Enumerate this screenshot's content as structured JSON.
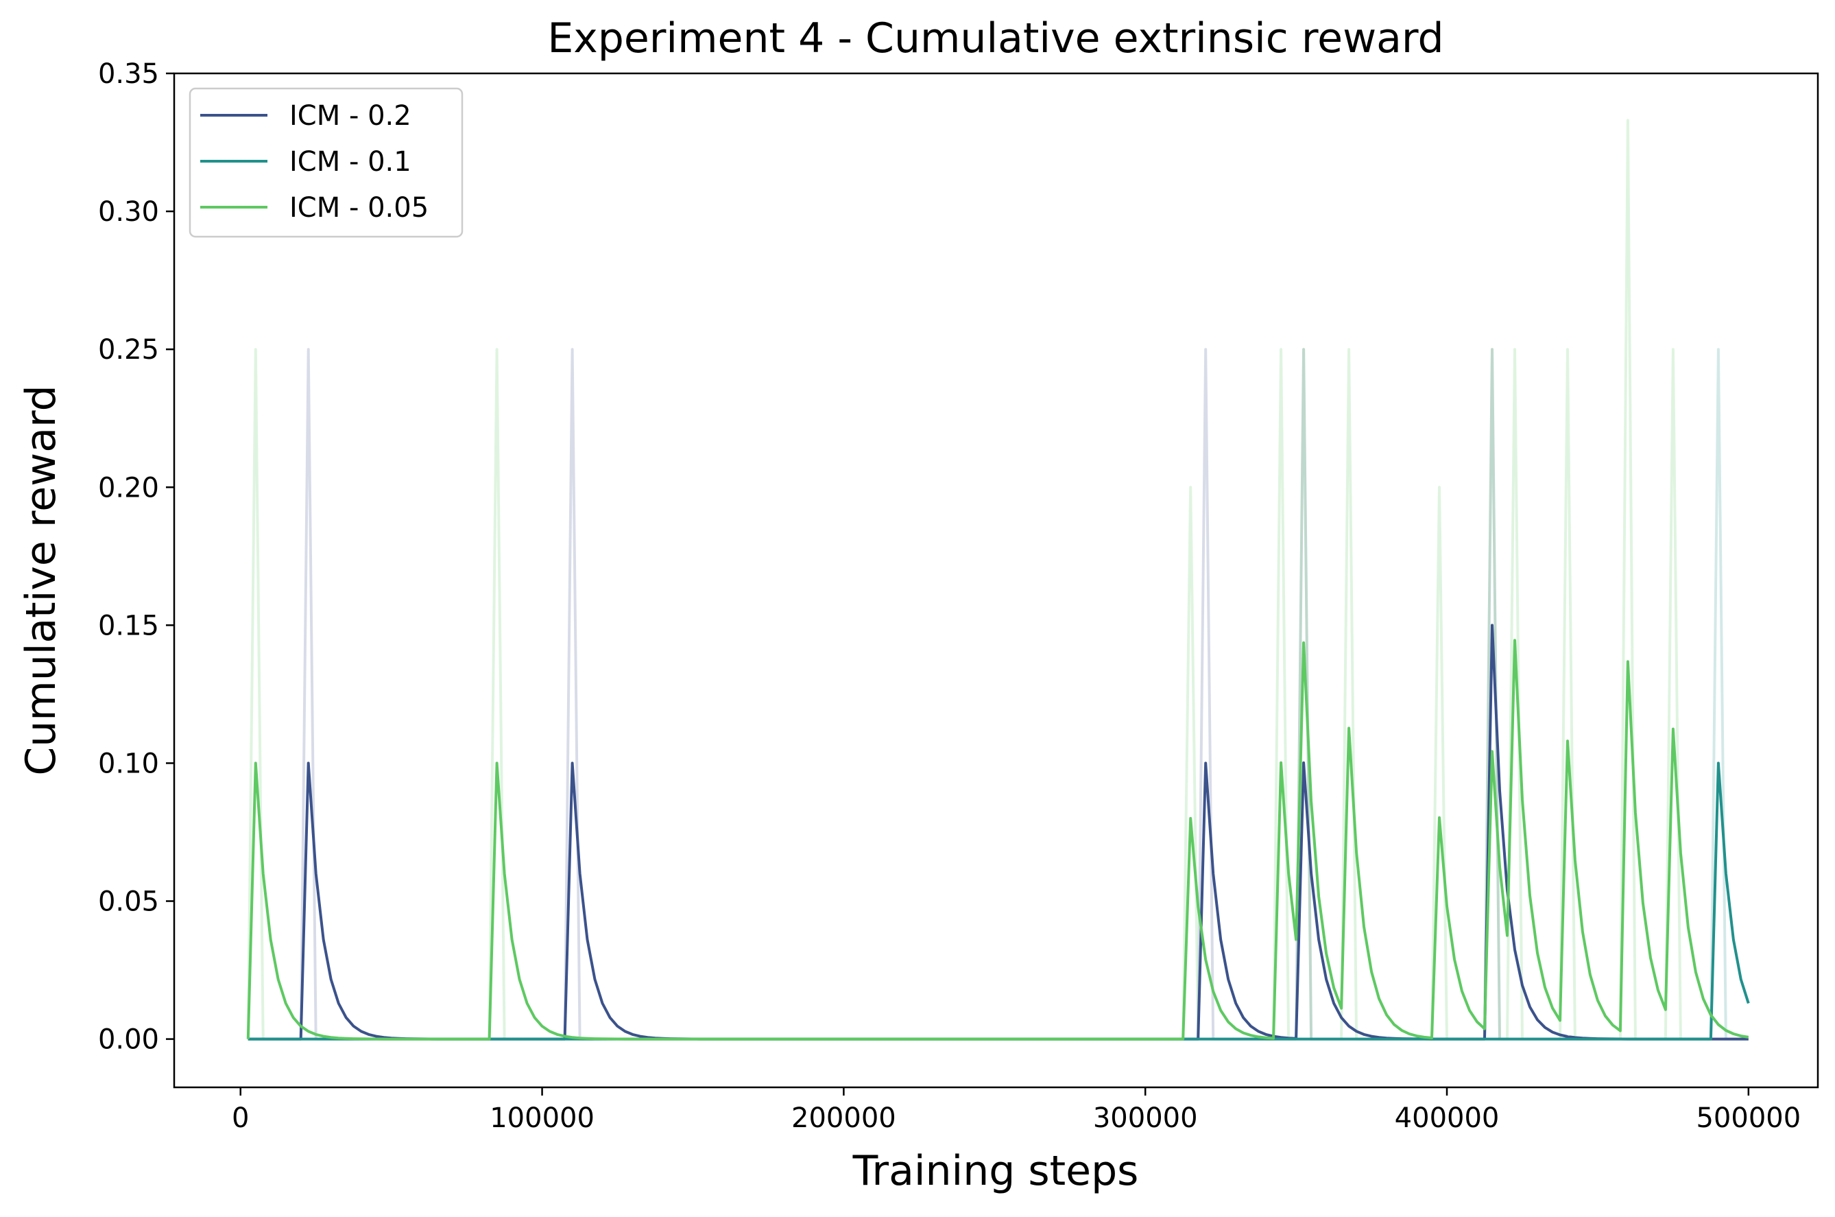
{
  "chart_data": {
    "type": "line",
    "title": "Experiment 4 - Cumulative extrinsic reward",
    "xlabel": "Training steps",
    "ylabel": "Cumulative reward",
    "xlim": [
      -22000,
      523000
    ],
    "ylim": [
      -0.0175,
      0.35
    ],
    "xticks": [
      0,
      100000,
      200000,
      300000,
      400000,
      500000
    ],
    "xtick_labels": [
      "0",
      "100000",
      "200000",
      "300000",
      "400000",
      "500000"
    ],
    "yticks": [
      0.0,
      0.05,
      0.1,
      0.15,
      0.2,
      0.25,
      0.3,
      0.35
    ],
    "ytick_labels": [
      "0.00",
      "0.05",
      "0.10",
      "0.15",
      "0.20",
      "0.25",
      "0.30",
      "0.35"
    ],
    "grid": false,
    "legend_position": "top-left",
    "x_start": 2500,
    "x_end": 500000,
    "x_step": 2500,
    "smoothing_weight": 0.6,
    "series": [
      {
        "name": "ICM - 0.2",
        "color": "#3b528b",
        "raw_events": [
          [
            22500,
            0.25
          ],
          [
            110000,
            0.25
          ],
          [
            320000,
            0.25
          ],
          [
            352500,
            0.25
          ],
          [
            415000,
            0.25
          ]
        ],
        "smoothed_events": [
          [
            22500,
            0.1
          ],
          [
            110000,
            0.1
          ],
          [
            320000,
            0.1
          ],
          [
            352500,
            0.1
          ],
          [
            415000,
            0.15
          ]
        ]
      },
      {
        "name": "ICM - 0.1",
        "color": "#21918c",
        "raw_events": [
          [
            490000,
            0.25
          ]
        ],
        "smoothed_events": [
          [
            490000,
            0.1
          ]
        ]
      },
      {
        "name": "ICM - 0.05",
        "color": "#5ec962",
        "raw_events": [
          [
            5000,
            0.25
          ],
          [
            85000,
            0.25
          ],
          [
            315000,
            0.2
          ],
          [
            345000,
            0.25
          ],
          [
            352500,
            0.25
          ],
          [
            367500,
            0.25
          ],
          [
            397500,
            0.2
          ],
          [
            415000,
            0.25
          ],
          [
            422500,
            0.25
          ],
          [
            440000,
            0.25
          ],
          [
            460000,
            0.333
          ],
          [
            475000,
            0.25
          ]
        ],
        "smoothed_events": [
          [
            5000,
            0.1
          ],
          [
            85000,
            0.1
          ],
          [
            315000,
            0.08
          ],
          [
            345000,
            0.1
          ],
          [
            352500,
            0.122
          ],
          [
            367500,
            0.106
          ],
          [
            397500,
            0.08
          ],
          [
            415000,
            0.102
          ],
          [
            422500,
            0.122
          ],
          [
            440000,
            0.104
          ],
          [
            460000,
            0.135
          ],
          [
            475000,
            0.106
          ]
        ]
      }
    ]
  }
}
